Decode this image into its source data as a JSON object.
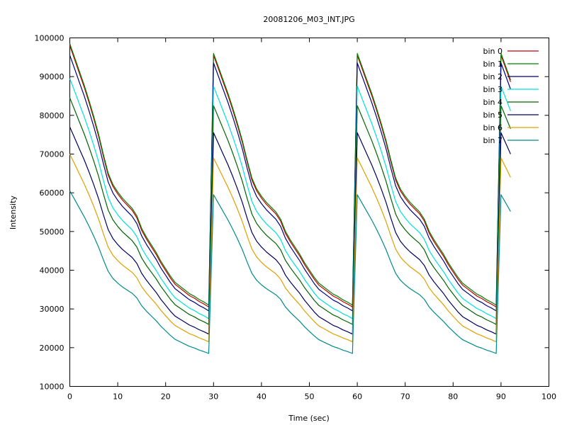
{
  "chart_data": {
    "type": "line",
    "title": "20081206_M03_INT.JPG",
    "xlabel": "Time (sec)",
    "ylabel": "Intensity",
    "xlim": [
      0,
      100
    ],
    "ylim": [
      10000,
      100000
    ],
    "xticks": [
      0,
      10,
      20,
      30,
      40,
      50,
      60,
      70,
      80,
      90,
      100
    ],
    "yticks": [
      10000,
      20000,
      30000,
      40000,
      50000,
      60000,
      70000,
      80000,
      90000,
      100000
    ],
    "grid": false,
    "legend_position": "top-right",
    "cycle": {
      "x": [
        0,
        1,
        2,
        3,
        4,
        5,
        6,
        7,
        8,
        9,
        10,
        11,
        12,
        13,
        14,
        15,
        16,
        17,
        18,
        19,
        20,
        21,
        22,
        23,
        24,
        25,
        26,
        27,
        28,
        29
      ],
      "shape": [
        1.0,
        0.945,
        0.89,
        0.835,
        0.775,
        0.71,
        0.64,
        0.56,
        0.485,
        0.44,
        0.41,
        0.385,
        0.365,
        0.345,
        0.315,
        0.265,
        0.23,
        0.2,
        0.17,
        0.135,
        0.105,
        0.075,
        0.05,
        0.035,
        0.02,
        0.005,
        -0.005,
        -0.018,
        -0.028,
        -0.04
      ]
    },
    "series": [
      {
        "name": "bin 0",
        "color": "#c00000",
        "start": 98000,
        "end": 30500,
        "peak": 95500,
        "cycle_ends": [
          30500,
          30500,
          30500
        ],
        "tail_end": 92
      },
      {
        "name": "bin 1",
        "color": "#008000",
        "start": 98500,
        "end": 31000,
        "peak": 96000,
        "tail_end": 92
      },
      {
        "name": "bin 2",
        "color": "#000080",
        "start": 95500,
        "end": 29500,
        "peak": 93500,
        "tail_end": 92
      },
      {
        "name": "bin 3",
        "color": "#00e0e0",
        "start": 89500,
        "end": 27500,
        "peak": 87500,
        "tail_end": 92
      },
      {
        "name": "bin 4",
        "color": "#006400",
        "start": 84500,
        "end": 26000,
        "peak": 82500,
        "tail_end": 92
      },
      {
        "name": "bin 5",
        "color": "#000060",
        "start": 77000,
        "end": 23500,
        "peak": 75500,
        "tail_end": 92
      },
      {
        "name": "bin 6",
        "color": "#e0a000",
        "start": 70000,
        "end": 21500,
        "peak": 69000,
        "tail_end": 92
      },
      {
        "name": "bin 7",
        "color": "#008b8b",
        "start": 60500,
        "end": 18500,
        "peak": 59500,
        "tail_end": 92
      }
    ]
  }
}
